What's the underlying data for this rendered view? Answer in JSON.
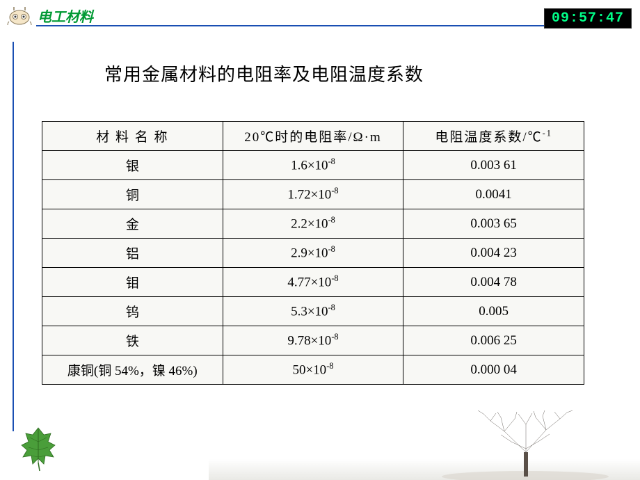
{
  "header": {
    "title": "电工材料",
    "clock": "09:57:47",
    "title_color": "#009933",
    "line_color": "#1a4fb3",
    "clock_bg": "#000000",
    "clock_fg": "#00ff88"
  },
  "main": {
    "title": "常用金属材料的电阻率及电阻温度系数"
  },
  "table": {
    "type": "table",
    "border_color": "#000000",
    "bg_color": "#f8f8f5",
    "columns": [
      {
        "label_html": "材 料 名 称"
      },
      {
        "label_html": "20℃时的电阻率/Ω·m"
      },
      {
        "label_html": "电阻温度系数/℃<sup>-1</sup>"
      }
    ],
    "rows": [
      {
        "name": "银",
        "res_html": "1.6×10<sup>-8</sup>",
        "temp": "0.003 61"
      },
      {
        "name": "铜",
        "res_html": "1.72×10<sup>-8</sup>",
        "temp": "0.0041"
      },
      {
        "name": "金",
        "res_html": "2.2×10<sup>-8</sup>",
        "temp": "0.003 65"
      },
      {
        "name": "铝",
        "res_html": "2.9×10<sup>-8</sup>",
        "temp": "0.004 23"
      },
      {
        "name": "钼",
        "res_html": "4.77×10<sup>-8</sup>",
        "temp": "0.004 78"
      },
      {
        "name": "钨",
        "res_html": "5.3×10<sup>-8</sup>",
        "temp": "0.005"
      },
      {
        "name": "铁",
        "res_html": "9.78×10<sup>-8</sup>",
        "temp": "0.006 25"
      },
      {
        "name": "康铜(铜 54%，镍 46%)",
        "res_html": "50×10<sup>-8</sup>",
        "temp": "0.000 04"
      }
    ]
  },
  "decor": {
    "leaf_color": "#4a9e3a",
    "leaf_dark": "#2d6b1f",
    "tree_color": "#6b6560"
  }
}
